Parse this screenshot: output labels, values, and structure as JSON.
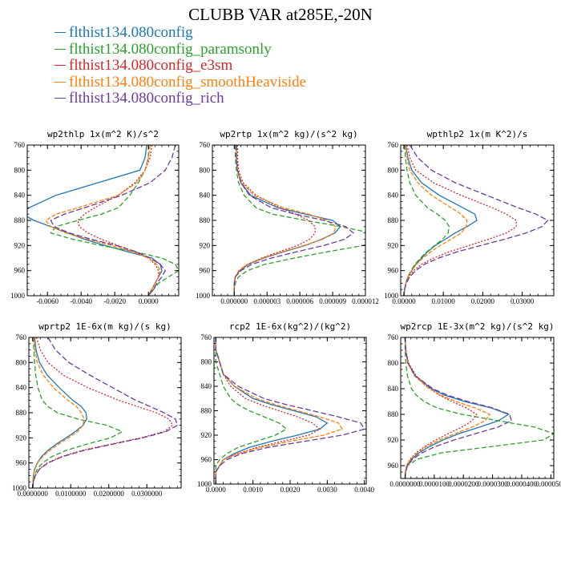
{
  "title": "CLUBB VAR at285E,-20N",
  "legend": [
    {
      "label": "flthist134.080config",
      "color": "#1f77b4"
    },
    {
      "label": "flthist134.080config_paramsonly",
      "color": "#2ca02c"
    },
    {
      "label": "flthist134.080config_e3sm",
      "color": "#d62728"
    },
    {
      "label": "flthist134.080config_smoothHeaviside",
      "color": "#ff7f0e"
    },
    {
      "label": "flthist134.080config_rich",
      "color": "#6a3d9a"
    }
  ],
  "chart_data": [
    {
      "type": "line",
      "title": "wp2thlp  1x(m^2 K)/s^2",
      "xlim": [
        -0.0072,
        0.0018
      ],
      "ylim": [
        760,
        1000
      ],
      "xticks": [
        -0.006,
        -0.004,
        -0.002,
        0.0
      ],
      "xtick_labels": [
        "-0.0060",
        "-0.0040",
        "-0.0020",
        "0.0000"
      ],
      "yticks": [
        760,
        800,
        840,
        880,
        920,
        960,
        1000
      ],
      "y": [
        760,
        780,
        800,
        820,
        840,
        860,
        870,
        880,
        890,
        900,
        910,
        920,
        930,
        940,
        950,
        960,
        970,
        980,
        990,
        1000
      ],
      "series": [
        {
          "values": [
            -0.0001,
            -0.0002,
            -0.0005,
            -0.003,
            -0.0055,
            -0.0071,
            -0.0075,
            -0.0068,
            -0.0058,
            -0.0048,
            -0.0038,
            -0.0026,
            -0.0012,
            0.0002,
            0.0007,
            0.0008,
            0.0006,
            0.0004,
            0.0002,
            0.0
          ]
        },
        {
          "values": [
            0.0,
            0.0,
            -0.0002,
            -0.0006,
            -0.0011,
            -0.0018,
            -0.0028,
            -0.0042,
            -0.0055,
            -0.0058,
            -0.0045,
            -0.0028,
            -0.0008,
            0.0008,
            0.0016,
            0.0018,
            0.0012,
            0.0006,
            0.0003,
            0.0
          ]
        },
        {
          "values": [
            0.0002,
            0.0001,
            -0.0002,
            -0.0008,
            -0.0018,
            -0.0032,
            -0.0038,
            -0.0042,
            -0.0041,
            -0.0036,
            -0.0028,
            -0.0018,
            -0.0008,
            0.0,
            0.0004,
            0.0006,
            0.0006,
            0.0004,
            0.0002,
            0.0
          ]
        },
        {
          "values": [
            0.0001,
            0.0,
            -0.0002,
            -0.0007,
            -0.0018,
            -0.0042,
            -0.0055,
            -0.0061,
            -0.0058,
            -0.0049,
            -0.0036,
            -0.0022,
            -0.0009,
            0.0,
            0.0005,
            0.0007,
            0.0006,
            0.0004,
            0.0002,
            0.0
          ]
        },
        {
          "values": [
            0.0016,
            0.0014,
            0.001,
            0.0001,
            -0.0016,
            -0.0038,
            -0.005,
            -0.0058,
            -0.0056,
            -0.0047,
            -0.0034,
            -0.0019,
            -0.0007,
            0.0001,
            0.0007,
            0.001,
            0.0008,
            0.0005,
            0.0003,
            0.0
          ]
        }
      ]
    },
    {
      "type": "line",
      "title": "wp2rtp  1x(m^2 kg)/(s^2 kg)",
      "xlim": [
        -2e-06,
        1.2e-05
      ],
      "ylim": [
        760,
        1000
      ],
      "xticks": [
        0.0,
        3e-06,
        6e-06,
        9e-06,
        1.2e-05
      ],
      "xtick_labels": [
        "0.000000",
        "0.000003",
        "0.000006",
        "0.000009",
        "0.000012"
      ],
      "yticks": [
        760,
        800,
        840,
        880,
        920,
        960,
        1000
      ],
      "y": [
        760,
        780,
        800,
        820,
        840,
        860,
        870,
        880,
        890,
        900,
        910,
        920,
        930,
        940,
        950,
        960,
        970,
        980,
        990,
        1000
      ],
      "series": [
        {
          "values": [
            2e-07,
            2e-07,
            3e-07,
            6e-07,
            1.5e-06,
            4e-06,
            6.5e-06,
            9e-06,
            9.7e-06,
            9.2e-06,
            8e-06,
            6.5e-06,
            4.5e-06,
            2.7e-06,
            1.3e-06,
            5e-07,
            1e-07,
            0.0,
            0.0,
            0.0
          ]
        },
        {
          "values": [
            1e-07,
            1e-07,
            2e-07,
            4e-07,
            9e-07,
            2e-06,
            3.5e-06,
            6.5e-06,
            9.8e-06,
            1.25e-05,
            1.35e-05,
            1.18e-05,
            8.5e-06,
            5.5e-06,
            2.8e-06,
            1.2e-06,
            4e-07,
            1e-07,
            0.0,
            0.0
          ]
        },
        {
          "values": [
            3e-07,
            3e-07,
            4e-07,
            8e-07,
            2e-06,
            4.2e-06,
            5.6e-06,
            6.8e-06,
            7.4e-06,
            7.4e-06,
            6.9e-06,
            5.8e-06,
            4.1e-06,
            2.5e-06,
            1.2e-06,
            5e-07,
            1e-07,
            0.0,
            0.0,
            0.0
          ]
        },
        {
          "values": [
            2e-07,
            2e-07,
            3e-07,
            7e-07,
            1.8e-06,
            4.5e-06,
            6.8e-06,
            8.5e-06,
            9.3e-06,
            9.1e-06,
            8.1e-06,
            6.4e-06,
            4.4e-06,
            2.6e-06,
            1.2e-06,
            4e-07,
            1e-07,
            0.0,
            0.0,
            0.0
          ]
        },
        {
          "values": [
            2e-07,
            2e-07,
            3e-07,
            6e-07,
            1.4e-06,
            3.4e-06,
            5.6e-06,
            8.2e-06,
            1.02e-05,
            1.09e-05,
            1.01e-05,
            8.2e-06,
            5.7e-06,
            3.4e-06,
            1.6e-06,
            6e-07,
            1e-07,
            0.0,
            0.0,
            0.0
          ]
        }
      ]
    },
    {
      "type": "line",
      "title": "wpthlp2  1x(m K^2)/s",
      "xlim": [
        -0.0008,
        0.038
      ],
      "ylim": [
        760,
        1000
      ],
      "xticks": [
        0.0,
        0.01,
        0.02,
        0.03
      ],
      "xtick_labels": [
        "0.00000",
        "0.01000",
        "0.02000",
        "0.03000"
      ],
      "yticks": [
        760,
        800,
        840,
        880,
        920,
        960,
        1000
      ],
      "y": [
        760,
        780,
        800,
        820,
        840,
        860,
        870,
        880,
        890,
        900,
        910,
        920,
        930,
        940,
        950,
        960,
        970,
        980,
        990,
        1000
      ],
      "series": [
        {
          "values": [
            0.0005,
            0.001,
            0.002,
            0.0045,
            0.009,
            0.015,
            0.018,
            0.0185,
            0.016,
            0.013,
            0.0105,
            0.008,
            0.006,
            0.0045,
            0.003,
            0.002,
            0.001,
            0.0005,
            0.0002,
            0.0
          ]
        },
        {
          "values": [
            0.0002,
            0.0004,
            0.0008,
            0.0015,
            0.003,
            0.006,
            0.0085,
            0.0105,
            0.0115,
            0.0112,
            0.0098,
            0.0078,
            0.0058,
            0.0042,
            0.0028,
            0.0018,
            0.001,
            0.0005,
            0.0002,
            0.0
          ]
        },
        {
          "values": [
            0.0008,
            0.0015,
            0.003,
            0.0075,
            0.0145,
            0.0225,
            0.026,
            0.0285,
            0.0285,
            0.026,
            0.0215,
            0.0165,
            0.0115,
            0.0075,
            0.0045,
            0.0025,
            0.0012,
            0.0005,
            0.0002,
            0.0
          ]
        },
        {
          "values": [
            0.0004,
            0.0008,
            0.0015,
            0.0035,
            0.007,
            0.012,
            0.0145,
            0.016,
            0.0158,
            0.0145,
            0.012,
            0.0092,
            0.0068,
            0.0048,
            0.0032,
            0.002,
            0.001,
            0.0005,
            0.0002,
            0.0
          ]
        },
        {
          "values": [
            0.0015,
            0.0035,
            0.007,
            0.013,
            0.021,
            0.029,
            0.0335,
            0.0365,
            0.035,
            0.031,
            0.0255,
            0.0195,
            0.0135,
            0.0088,
            0.0052,
            0.003,
            0.0015,
            0.0006,
            0.0002,
            0.0
          ]
        }
      ]
    },
    {
      "type": "line",
      "title": "wprtp2  1E-6x(m kg)/(s kg)",
      "xlim": [
        -0.001,
        0.039
      ],
      "ylim": [
        760,
        1000
      ],
      "xticks": [
        0.0,
        0.01,
        0.02,
        0.03
      ],
      "xtick_labels": [
        "0.0000000",
        "0.0100000",
        "0.0200000",
        "0.0300000"
      ],
      "yticks": [
        760,
        800,
        840,
        880,
        920,
        960,
        1000
      ],
      "y": [
        760,
        780,
        800,
        820,
        840,
        860,
        870,
        880,
        890,
        900,
        910,
        920,
        930,
        940,
        950,
        960,
        970,
        980,
        990,
        1000
      ],
      "series": [
        {
          "values": [
            0.0005,
            0.0009,
            0.0018,
            0.0038,
            0.007,
            0.0105,
            0.0128,
            0.014,
            0.0142,
            0.0132,
            0.0112,
            0.0088,
            0.0062,
            0.004,
            0.0023,
            0.0012,
            0.0005,
            0.0002,
            0.0001,
            0.0
          ]
        },
        {
          "values": [
            0.0002,
            0.0003,
            0.0005,
            0.0008,
            0.0014,
            0.0025,
            0.004,
            0.0065,
            0.0118,
            0.0195,
            0.0235,
            0.0205,
            0.0142,
            0.0088,
            0.005,
            0.0026,
            0.0012,
            0.0005,
            0.0002,
            0.0
          ]
        },
        {
          "values": [
            0.001,
            0.002,
            0.004,
            0.008,
            0.0145,
            0.0225,
            0.0275,
            0.0325,
            0.0358,
            0.0368,
            0.0345,
            0.0285,
            0.0205,
            0.013,
            0.0075,
            0.0038,
            0.0017,
            0.0007,
            0.0002,
            0.0
          ]
        },
        {
          "values": [
            0.0003,
            0.0006,
            0.0012,
            0.0028,
            0.0055,
            0.0092,
            0.0115,
            0.0128,
            0.0135,
            0.0132,
            0.0118,
            0.0094,
            0.0068,
            0.0045,
            0.0026,
            0.0013,
            0.0006,
            0.0002,
            0.0001,
            0.0
          ]
        },
        {
          "values": [
            0.004,
            0.006,
            0.0095,
            0.015,
            0.021,
            0.027,
            0.0308,
            0.0345,
            0.0375,
            0.038,
            0.035,
            0.029,
            0.021,
            0.0135,
            0.0078,
            0.004,
            0.0018,
            0.0007,
            0.0002,
            0.0
          ]
        }
      ]
    },
    {
      "type": "line",
      "title": "rcp2  1E-6x(kg^2)/(kg^2)",
      "xlim": [
        -5e-05,
        0.00405
      ],
      "ylim": [
        760,
        1000
      ],
      "xticks": [
        0.0,
        0.001,
        0.002,
        0.003,
        0.004
      ],
      "xtick_labels": [
        "0.0000",
        "0.0010",
        "0.0020",
        "0.0030",
        "0.0040"
      ],
      "yticks": [
        760,
        800,
        840,
        880,
        920,
        960,
        1000
      ],
      "y": [
        760,
        780,
        800,
        820,
        840,
        860,
        870,
        880,
        890,
        900,
        910,
        920,
        930,
        940,
        950,
        960,
        970,
        980,
        990,
        1000
      ],
      "series": [
        {
          "values": [
            0.0,
            0.0,
            0.0001,
            0.0002,
            0.0005,
            0.001,
            0.0015,
            0.0021,
            0.0027,
            0.003,
            0.0028,
            0.0022,
            0.0015,
            0.0009,
            0.0005,
            0.0002,
            0.0001,
            0.0,
            0.0,
            0.0
          ]
        },
        {
          "values": [
            0.0,
            0.0,
            0.0,
            0.0001,
            0.0002,
            0.0004,
            0.0006,
            0.0009,
            0.0013,
            0.0017,
            0.0019,
            0.0016,
            0.0011,
            0.0006,
            0.0003,
            0.0001,
            0.0,
            0.0,
            0.0,
            0.0
          ]
        },
        {
          "values": [
            0.0,
            0.0,
            0.0001,
            0.0002,
            0.0004,
            0.0008,
            0.0012,
            0.0017,
            0.0022,
            0.0026,
            0.0028,
            0.0025,
            0.0018,
            0.0011,
            0.0006,
            0.0002,
            0.0001,
            0.0,
            0.0,
            0.0
          ]
        },
        {
          "values": [
            0.0,
            0.0,
            0.0001,
            0.0002,
            0.0005,
            0.0011,
            0.0016,
            0.0022,
            0.0028,
            0.0033,
            0.0034,
            0.0029,
            0.002,
            0.0012,
            0.0006,
            0.0002,
            0.0001,
            0.0,
            0.0,
            0.0
          ]
        },
        {
          "values": [
            0.0,
            0.0,
            0.0001,
            0.0002,
            0.0006,
            0.0013,
            0.0019,
            0.0026,
            0.0033,
            0.0039,
            0.004,
            0.0034,
            0.0024,
            0.0014,
            0.0007,
            0.0003,
            0.0001,
            0.0,
            0.0,
            0.0
          ]
        }
      ]
    },
    {
      "type": "line",
      "title": "wp2rcp  1E-3x(m^2 kg)/(s^2 kg)",
      "xlim": [
        -1.5e-06,
        5.1e-05
      ],
      "ylim": [
        760,
        980
      ],
      "xticks": [
        0.0,
        1e-05,
        2e-05,
        3e-05,
        4e-05,
        5e-05
      ],
      "xtick_labels": [
        "0.0000000",
        "0.0000100",
        "0.0000200",
        "0.0000300",
        "0.0000400",
        "0.0000500"
      ],
      "yticks": [
        760,
        800,
        840,
        880,
        920,
        960
      ],
      "y": [
        760,
        780,
        800,
        820,
        840,
        850,
        860,
        870,
        880,
        890,
        900,
        910,
        920,
        930,
        940,
        950,
        960,
        970,
        980
      ],
      "series": [
        {
          "values": [
            0.0,
            2e-07,
            1e-06,
            3.5e-06,
            9e-06,
            1.35e-05,
            2.05e-05,
            2.95e-05,
            3.55e-05,
            3.2e-05,
            2.55e-05,
            1.85e-05,
            1.3e-05,
            8.5e-06,
            4.8e-06,
            2.2e-06,
            7e-07,
            2e-07,
            0.0
          ]
        },
        {
          "values": [
            0.0,
            0.0,
            3e-07,
            8e-07,
            2.2e-06,
            3.8e-06,
            6.5e-06,
            1.1e-05,
            1.95e-05,
            3.2e-05,
            4.45e-05,
            5.1e-05,
            4.75e-05,
            3e-05,
            1.25e-05,
            4.2e-06,
            8e-07,
            0.0,
            0.0
          ]
        },
        {
          "values": [
            0.0,
            3e-07,
            1.2e-06,
            3.8e-06,
            8.5e-06,
            1.18e-05,
            1.6e-05,
            2.1e-05,
            2.45e-05,
            2.3e-05,
            1.95e-05,
            1.48e-05,
            1.05e-05,
            6.8e-06,
            3.8e-06,
            1.7e-06,
            5e-07,
            1e-07,
            0.0
          ]
        },
        {
          "values": [
            0.0,
            2e-07,
            9e-07,
            3.2e-06,
            8.2e-06,
            1.22e-05,
            1.75e-05,
            2.4e-05,
            2.9e-05,
            2.75e-05,
            2.3e-05,
            1.72e-05,
            1.18e-05,
            7.5e-06,
            4.2e-06,
            1.9e-06,
            6e-07,
            1e-07,
            0.0
          ]
        },
        {
          "values": [
            0.0,
            2e-07,
            1e-06,
            3.5e-06,
            9.5e-06,
            1.45e-05,
            2.15e-05,
            3e-05,
            3.58e-05,
            3.65e-05,
            3.18e-05,
            2.42e-05,
            1.68e-05,
            1.05e-05,
            5.8e-06,
            2.6e-06,
            8e-07,
            2e-07,
            0.0
          ]
        }
      ]
    }
  ]
}
